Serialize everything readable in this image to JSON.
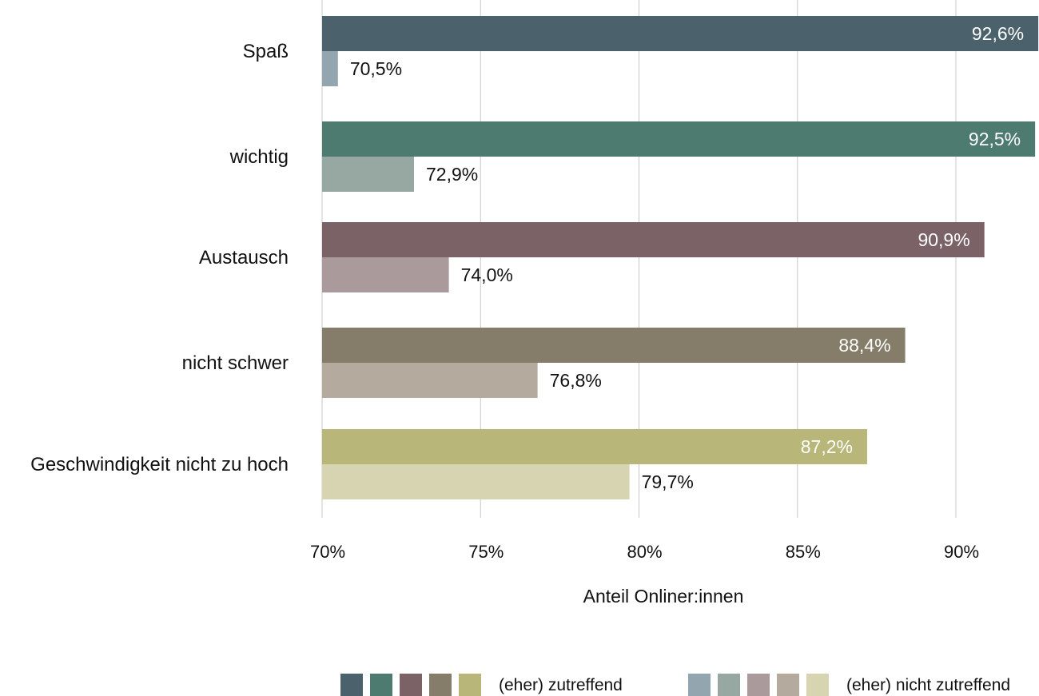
{
  "chart_data": {
    "type": "bar",
    "orientation": "horizontal",
    "categories": [
      "Spaß",
      "wichtig",
      "Austausch",
      "nicht schwer",
      "Geschwindigkeit nicht zu hoch"
    ],
    "series": [
      {
        "name": "(eher) zutreffend",
        "values": [
          92.6,
          92.5,
          90.9,
          88.4,
          87.2
        ],
        "labels": [
          "92,6%",
          "92,5%",
          "90,9%",
          "88,4%",
          "87,2%"
        ],
        "colors": [
          "#4b616c",
          "#4d7b6f",
          "#7a6266",
          "#857d6a",
          "#b9b67a"
        ]
      },
      {
        "name": "(eher) nicht zutreffend",
        "values": [
          70.5,
          72.9,
          74.0,
          76.8,
          79.7
        ],
        "labels": [
          "70,5%",
          "72,9%",
          "74,0%",
          "76,8%",
          "79,7%"
        ],
        "colors": [
          "#93a6b0",
          "#97a8a3",
          "#ab9a9b",
          "#b4ab9e",
          "#d7d5b1"
        ]
      }
    ],
    "x_ticks": [
      70,
      75,
      80,
      85,
      90
    ],
    "x_tick_labels": [
      "70%",
      "75%",
      "80%",
      "85%",
      "90%"
    ],
    "xlim": [
      70,
      92.6
    ],
    "xlabel": "Anteil Onliner:innen",
    "title": "",
    "grid": true,
    "legend_position": "bottom-right"
  }
}
